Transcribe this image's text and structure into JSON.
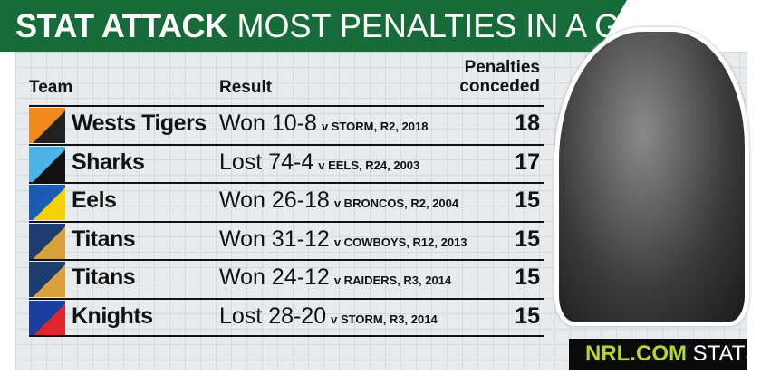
{
  "title": {
    "bold": "STAT ATTACK",
    "rest": "MOST PENALTIES IN A GAME"
  },
  "columns": {
    "team": "Team",
    "result": "Result",
    "penalties_line1": "Penalties",
    "penalties_line2": "conceded"
  },
  "rows": [
    {
      "team": "Wests Tigers",
      "result": "Won 10-8",
      "detail": "v STORM, R2, 2018",
      "penalties": "18",
      "logo": "wests-tigers-logo",
      "colors": [
        "#f08a1c",
        "#222"
      ]
    },
    {
      "team": "Sharks",
      "result": "Lost 74-4",
      "detail": "v EELS, R24, 2003",
      "penalties": "17",
      "logo": "sharks-logo",
      "colors": [
        "#4bb3e6",
        "#111"
      ]
    },
    {
      "team": "Eels",
      "result": "Won 26-18",
      "detail": "v BRONCOS, R2, 2004",
      "penalties": "15",
      "logo": "eels-logo",
      "colors": [
        "#1a5bb5",
        "#f5d300"
      ]
    },
    {
      "team": "Titans",
      "result": "Won 31-12",
      "detail": "v COWBOYS, R12, 2013",
      "penalties": "15",
      "logo": "titans-logo",
      "colors": [
        "#1c3d6e",
        "#d9a13a"
      ]
    },
    {
      "team": "Titans",
      "result": "Won 24-12",
      "detail": "v RAIDERS, R3, 2014",
      "penalties": "15",
      "logo": "titans-logo",
      "colors": [
        "#1c3d6e",
        "#d9a13a"
      ]
    },
    {
      "team": "Knights",
      "result": "Lost 28-20",
      "detail": "v STORM, R3, 2014",
      "penalties": "15",
      "logo": "knights-logo",
      "colors": [
        "#1b3fa0",
        "#e0262d"
      ]
    }
  ],
  "badge": {
    "brand": "NRL.COM",
    "label": "STATS"
  }
}
